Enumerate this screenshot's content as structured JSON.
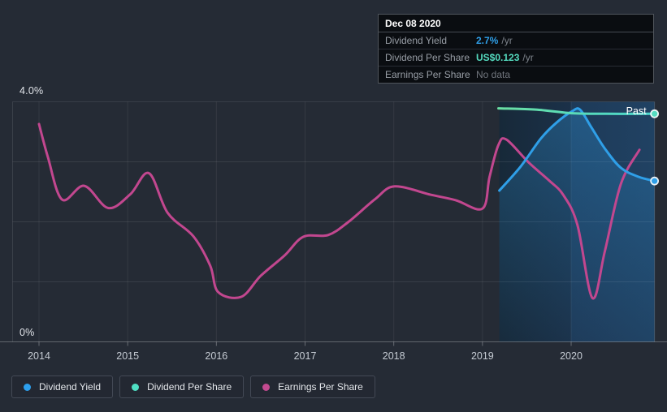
{
  "tooltip": {
    "date": "Dec 08 2020",
    "rows": [
      {
        "label": "Dividend Yield",
        "value": "2.7%",
        "suffix": "/yr",
        "value_color": "#2f9fe8"
      },
      {
        "label": "Dividend Per Share",
        "value": "US$0.123",
        "suffix": "/yr",
        "value_color": "#55dcc0"
      },
      {
        "label": "Earnings Per Share",
        "value": "No data",
        "suffix": "",
        "value_color": "#71767e"
      }
    ]
  },
  "legend": {
    "items": [
      {
        "label": "Dividend Yield",
        "color": "#2da0ee"
      },
      {
        "label": "Dividend Per Share",
        "color": "#4fdfc4"
      },
      {
        "label": "Earnings Per Share",
        "color": "#c34a90"
      }
    ]
  },
  "chart_data": {
    "type": "line",
    "title": "Dividend history chart",
    "y_axis": {
      "min": 0,
      "max": 4,
      "top_label": "4.0%",
      "bottom_label": "0%",
      "gridline_values": [
        1,
        2,
        3,
        4
      ]
    },
    "x_axis": {
      "years": [
        2014,
        2015,
        2016,
        2017,
        2018,
        2019,
        2020
      ],
      "labels": [
        "2014",
        "2015",
        "2016",
        "2017",
        "2018",
        "2019",
        "2020"
      ]
    },
    "past": {
      "label": "Past",
      "start_year": 2019.19,
      "end_year": 2020.94,
      "step_year": 2020.0
    },
    "series": [
      {
        "name": "Earnings Per Share",
        "color": "#c2478f",
        "end_dot": false,
        "area": false,
        "points": [
          [
            2014.0,
            3.63
          ],
          [
            2014.1,
            3.08
          ],
          [
            2014.26,
            2.37
          ],
          [
            2014.51,
            2.6
          ],
          [
            2014.78,
            2.23
          ],
          [
            2015.03,
            2.46
          ],
          [
            2015.24,
            2.81
          ],
          [
            2015.45,
            2.15
          ],
          [
            2015.74,
            1.76
          ],
          [
            2015.93,
            1.27
          ],
          [
            2016.02,
            0.83
          ],
          [
            2016.28,
            0.75
          ],
          [
            2016.5,
            1.1
          ],
          [
            2016.77,
            1.44
          ],
          [
            2016.98,
            1.75
          ],
          [
            2017.26,
            1.78
          ],
          [
            2017.49,
            2.0
          ],
          [
            2017.79,
            2.38
          ],
          [
            2018.01,
            2.59
          ],
          [
            2018.42,
            2.45
          ],
          [
            2018.7,
            2.36
          ],
          [
            2019.0,
            2.22
          ],
          [
            2019.08,
            2.75
          ],
          [
            2019.18,
            3.28
          ],
          [
            2019.27,
            3.37
          ],
          [
            2019.52,
            2.99
          ],
          [
            2019.75,
            2.69
          ],
          [
            2019.91,
            2.45
          ],
          [
            2020.07,
            1.95
          ],
          [
            2020.24,
            0.73
          ],
          [
            2020.38,
            1.51
          ],
          [
            2020.56,
            2.63
          ],
          [
            2020.77,
            3.2
          ]
        ]
      },
      {
        "name": "Dividend Yield",
        "color": "#2f9fe8",
        "end_dot": true,
        "area": true,
        "points": [
          [
            2019.19,
            2.52
          ],
          [
            2019.43,
            2.92
          ],
          [
            2019.66,
            3.39
          ],
          [
            2019.84,
            3.66
          ],
          [
            2020.01,
            3.84
          ],
          [
            2020.1,
            3.87
          ],
          [
            2020.23,
            3.57
          ],
          [
            2020.38,
            3.22
          ],
          [
            2020.56,
            2.9
          ],
          [
            2020.76,
            2.75
          ],
          [
            2020.94,
            2.68
          ]
        ]
      },
      {
        "name": "Dividend Per Share",
        "color": "#55dcc0",
        "color_start": "#6adfa3",
        "color_end": "#49d6ce",
        "display_value": "US$0.123",
        "end_dot": true,
        "area": false,
        "points": [
          [
            2019.18,
            3.89
          ],
          [
            2019.6,
            3.87
          ],
          [
            2020.01,
            3.81
          ],
          [
            2020.4,
            3.8
          ],
          [
            2020.94,
            3.8
          ]
        ]
      }
    ]
  }
}
